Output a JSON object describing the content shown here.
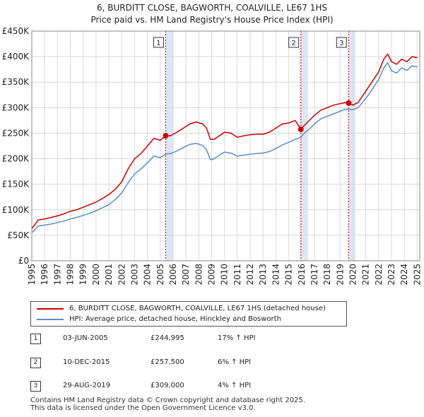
{
  "title_line1": "6, BURDITT CLOSE, BAGWORTH, COALVILLE, LE67 1HS",
  "title_line2": "Price paid vs. HM Land Registry's House Price Index (HPI)",
  "chart_data": {
    "type": "line",
    "title": "6, BURDITT CLOSE, BAGWORTH, COALVILLE, LE67 1HS",
    "subtitle": "Price paid vs. HM Land Registry's House Price Index (HPI)",
    "xlabel": "",
    "ylabel": "",
    "xlim": [
      1995,
      2025.2
    ],
    "ylim": [
      0,
      450000
    ],
    "y_ticks": [
      0,
      50000,
      100000,
      150000,
      200000,
      250000,
      300000,
      350000,
      400000,
      450000
    ],
    "y_tick_labels": [
      "£0",
      "£50K",
      "£100K",
      "£150K",
      "£200K",
      "£250K",
      "£300K",
      "£350K",
      "£400K",
      "£450K"
    ],
    "x_ticks": [
      1995,
      1996,
      1997,
      1998,
      1999,
      2000,
      2001,
      2002,
      2003,
      2004,
      2005,
      2006,
      2007,
      2008,
      2009,
      2010,
      2011,
      2012,
      2013,
      2014,
      2015,
      2016,
      2017,
      2018,
      2019,
      2020,
      2021,
      2022,
      2023,
      2024,
      2025
    ],
    "x_tick_labels": [
      "1995",
      "1996",
      "1997",
      "1998",
      "1999",
      "2000",
      "2001",
      "2002",
      "2003",
      "2004",
      "2005",
      "2006",
      "2007",
      "2008",
      "2009",
      "2010",
      "2011",
      "2012",
      "2013",
      "2014",
      "2015",
      "2016",
      "2017",
      "2018",
      "2019",
      "2020",
      "2021",
      "2022",
      "2023",
      "2024",
      "2025"
    ],
    "grid": true,
    "shaded_periods": [
      [
        2005.42,
        2006.0
      ],
      [
        2015.94,
        2016.5
      ],
      [
        2019.66,
        2020.2
      ]
    ],
    "series": [
      {
        "name": "6, BURDITT CLOSE, BAGWORTH, COALVILLE, LE67 1HS (detached house)",
        "color": "#cc0000",
        "x": [
          1995.0,
          1995.5,
          1996.0,
          1996.5,
          1997.0,
          1997.5,
          1998.0,
          1998.5,
          1999.0,
          1999.5,
          2000.0,
          2000.5,
          2001.0,
          2001.5,
          2002.0,
          2002.5,
          2003.0,
          2003.5,
          2004.0,
          2004.5,
          2005.0,
          2005.42,
          2005.8,
          2006.3,
          2006.8,
          2007.3,
          2007.8,
          2008.3,
          2008.6,
          2008.9,
          2009.2,
          2009.6,
          2010.0,
          2010.5,
          2011.0,
          2011.5,
          2012.0,
          2012.5,
          2013.0,
          2013.5,
          2014.0,
          2014.5,
          2015.0,
          2015.5,
          2015.94,
          2016.2,
          2016.6,
          2017.0,
          2017.5,
          2018.0,
          2018.5,
          2019.0,
          2019.4,
          2019.66,
          2020.0,
          2020.4,
          2020.8,
          2021.2,
          2021.6,
          2022.0,
          2022.4,
          2022.7,
          2023.0,
          2023.4,
          2023.8,
          2024.2,
          2024.6,
          2025.0
        ],
        "values": [
          63000,
          80000,
          82000,
          85000,
          88000,
          92000,
          97000,
          100000,
          105000,
          110000,
          115000,
          122000,
          130000,
          140000,
          155000,
          180000,
          200000,
          210000,
          225000,
          240000,
          236000,
          244995,
          245000,
          252000,
          260000,
          268000,
          272000,
          268000,
          260000,
          238000,
          238000,
          245000,
          252000,
          250000,
          242000,
          245000,
          247000,
          248000,
          248000,
          252000,
          260000,
          268000,
          270000,
          275000,
          257500,
          265000,
          275000,
          285000,
          295000,
          300000,
          305000,
          308000,
          310000,
          309000,
          305000,
          310000,
          325000,
          340000,
          355000,
          370000,
          395000,
          405000,
          390000,
          385000,
          395000,
          390000,
          400000,
          398000
        ]
      },
      {
        "name": "HPI: Average price, detached house, Hinckley and Bosworth",
        "color": "#5b8dc9",
        "x": [
          1995.0,
          1995.5,
          1996.0,
          1996.5,
          1997.0,
          1997.5,
          1998.0,
          1998.5,
          1999.0,
          1999.5,
          2000.0,
          2000.5,
          2001.0,
          2001.5,
          2002.0,
          2002.5,
          2003.0,
          2003.5,
          2004.0,
          2004.5,
          2005.0,
          2005.42,
          2005.8,
          2006.3,
          2006.8,
          2007.3,
          2007.8,
          2008.3,
          2008.6,
          2008.9,
          2009.2,
          2009.6,
          2010.0,
          2010.5,
          2011.0,
          2011.5,
          2012.0,
          2012.5,
          2013.0,
          2013.5,
          2014.0,
          2014.5,
          2015.0,
          2015.5,
          2015.94,
          2016.2,
          2016.6,
          2017.0,
          2017.5,
          2018.0,
          2018.5,
          2019.0,
          2019.4,
          2019.66,
          2020.0,
          2020.4,
          2020.8,
          2021.2,
          2021.6,
          2022.0,
          2022.4,
          2022.7,
          2023.0,
          2023.4,
          2023.8,
          2024.2,
          2024.6,
          2025.0
        ],
        "values": [
          55000,
          68000,
          70000,
          72000,
          75000,
          78000,
          82000,
          85000,
          89000,
          93000,
          98000,
          104000,
          110000,
          120000,
          133000,
          153000,
          170000,
          180000,
          192000,
          205000,
          202000,
          209000,
          210000,
          215000,
          222000,
          228000,
          230000,
          226000,
          218000,
          198000,
          200000,
          207000,
          213000,
          211000,
          205000,
          207000,
          209000,
          210000,
          211000,
          214000,
          220000,
          227000,
          232000,
          238000,
          242000,
          250000,
          258000,
          268000,
          278000,
          283000,
          288000,
          293000,
          297000,
          297000,
          296000,
          300000,
          312000,
          325000,
          340000,
          355000,
          378000,
          388000,
          372000,
          368000,
          378000,
          373000,
          382000,
          380000
        ]
      }
    ],
    "sale_markers": [
      {
        "label": "1",
        "x": 2005.42,
        "value": 244995
      },
      {
        "label": "2",
        "x": 2015.94,
        "value": 257500
      },
      {
        "label": "3",
        "x": 2019.66,
        "value": 309000
      }
    ]
  },
  "legend": {
    "property": "6, BURDITT CLOSE, BAGWORTH, COALVILLE, LE67 1HS (detached house)",
    "hpi": "HPI: Average price, detached house, Hinckley and Bosworth",
    "property_color": "#cc0000",
    "hpi_color": "#5b8dc9"
  },
  "sales": [
    {
      "num": "1",
      "date": "03-JUN-2005",
      "price": "£244,995",
      "hpi": "17% ↑ HPI"
    },
    {
      "num": "2",
      "date": "10-DEC-2015",
      "price": "£257,500",
      "hpi": "6% ↑ HPI"
    },
    {
      "num": "3",
      "date": "29-AUG-2019",
      "price": "£309,000",
      "hpi": "4% ↑ HPI"
    }
  ],
  "footer_line1": "Contains HM Land Registry data © Crown copyright and database right 2025.",
  "footer_line2": "This data is licensed under the Open Government Licence v3.0."
}
